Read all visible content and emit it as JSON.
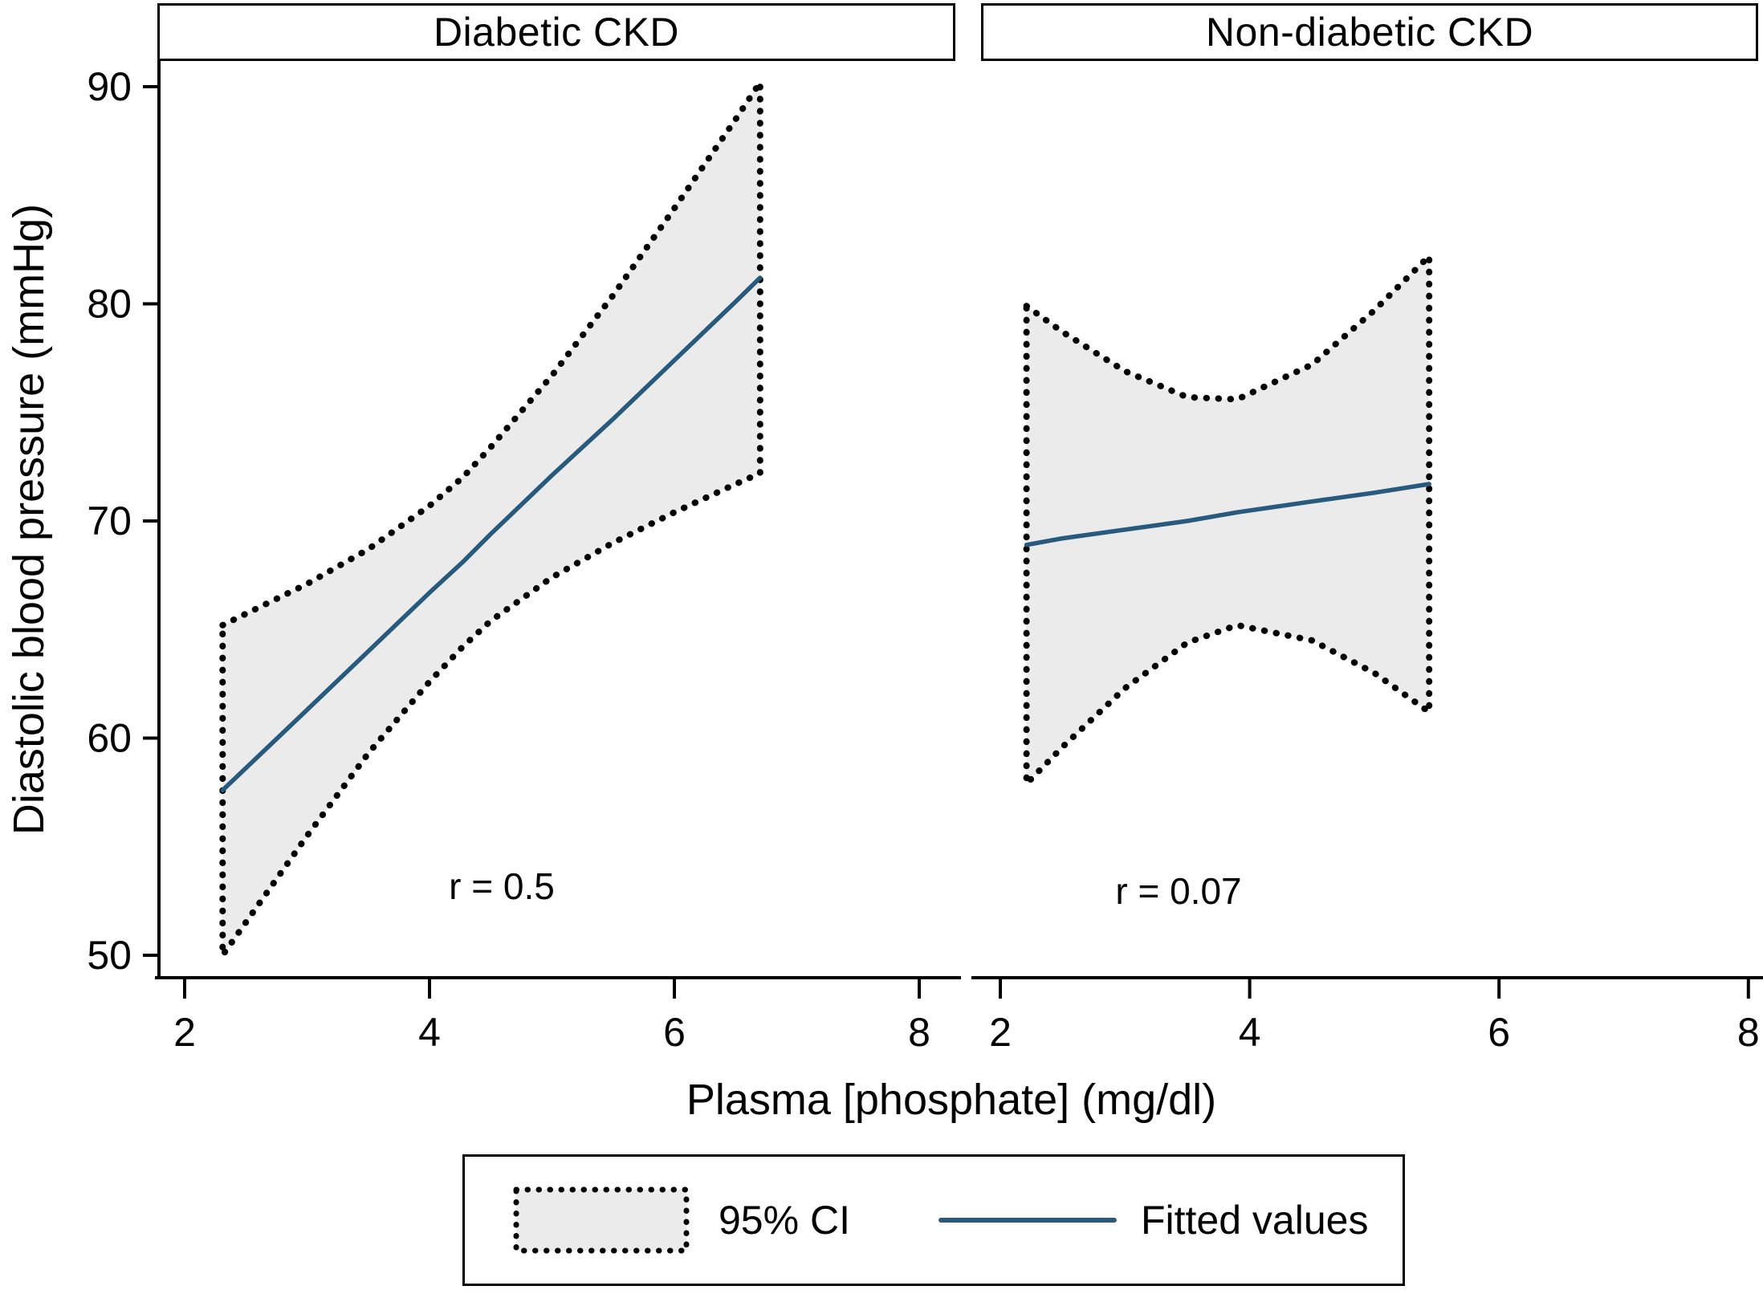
{
  "figure": {
    "y_axis_title": "Diastolic blood pressure (mmHg)",
    "x_axis_title": "Plasma [phosphate] (mg/dl)"
  },
  "legend": {
    "ci_label": "95% CI",
    "fit_label": "Fitted values"
  },
  "colors": {
    "fit_line": "#275a7d",
    "ci_fill": "#ebebeb",
    "ci_dotted_border": "#000000",
    "axis": "#000000",
    "background": "#ffffff"
  },
  "chart_data": {
    "type": "area",
    "description": "Two-panel fitted regression lines of diastolic blood pressure on plasma phosphate with dotted 95% confidence bands",
    "ylabel": "Diastolic blood pressure (mmHg)",
    "xlabel": "Plasma [phosphate] (mg/dl)",
    "y_ticks": [
      90,
      80,
      70,
      60,
      50
    ],
    "ylim": [
      49,
      91
    ],
    "xlim": [
      1.8,
      8.1
    ],
    "grid": false,
    "legend_entries": [
      "95% CI",
      "Fitted values"
    ],
    "legend_position": "bottom-center",
    "panels": [
      {
        "title": "Diabetic CKD",
        "annotation": "r = 0.5",
        "r_value": 0.5,
        "x_ticks": [
          2,
          4,
          6,
          8
        ],
        "x_range": [
          2.31,
          6.7
        ],
        "x": [
          2.31,
          3.0,
          3.5,
          4.0,
          4.27,
          4.5,
          5.0,
          5.5,
          6.0,
          6.5,
          6.7
        ],
        "fit": [
          57.6,
          61.3,
          64.0,
          66.7,
          68.1,
          69.4,
          72.1,
          74.7,
          77.4,
          80.1,
          81.2
        ],
        "ci_upper": [
          65.2,
          67.1,
          68.7,
          70.7,
          72.0,
          73.4,
          76.7,
          80.4,
          84.4,
          88.5,
          90.2
        ],
        "ci_lower": [
          50.0,
          55.5,
          59.3,
          62.6,
          64.2,
          65.4,
          67.4,
          69.0,
          70.4,
          71.7,
          72.2
        ]
      },
      {
        "title": "Non-diabetic CKD",
        "annotation": "r = 0.07",
        "r_value": 0.07,
        "x_ticks": [
          2,
          4,
          6,
          8
        ],
        "x_range": [
          2.21,
          5.44
        ],
        "x": [
          2.21,
          2.5,
          3.0,
          3.5,
          3.9,
          4.5,
          5.0,
          5.44
        ],
        "fit": [
          68.9,
          69.2,
          69.6,
          70.0,
          70.4,
          70.9,
          71.3,
          71.7
        ],
        "ci_upper": [
          79.9,
          78.7,
          76.9,
          75.7,
          75.6,
          77.2,
          79.7,
          82.2
        ],
        "ci_lower": [
          57.9,
          59.6,
          62.3,
          64.4,
          65.2,
          64.5,
          63.0,
          61.2
        ]
      }
    ]
  }
}
